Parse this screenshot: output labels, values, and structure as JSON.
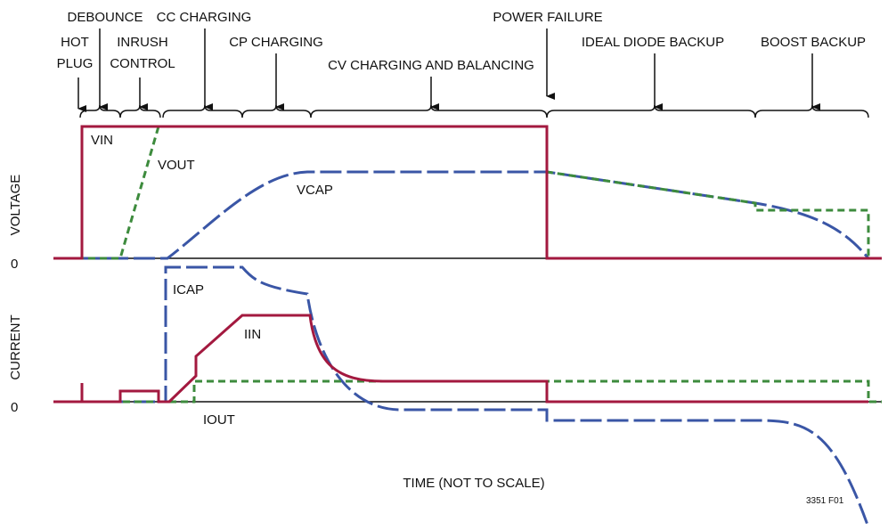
{
  "phases": [
    {
      "lines": [
        "HOT",
        "PLUG"
      ]
    },
    {
      "lines": [
        "DEBOUNCE"
      ]
    },
    {
      "lines": [
        "INRUSH",
        "CONTROL"
      ]
    },
    {
      "lines": [
        "CC CHARGING"
      ]
    },
    {
      "lines": [
        "CP CHARGING"
      ]
    },
    {
      "lines": [
        "CV CHARGING AND BALANCING"
      ]
    },
    {
      "lines": [
        "POWER FAILURE"
      ]
    },
    {
      "lines": [
        "IDEAL DIODE BACKUP"
      ]
    },
    {
      "lines": [
        "BOOST BACKUP"
      ]
    }
  ],
  "signals": {
    "vin": "VIN",
    "vout": "VOUT",
    "vcap": "VCAP",
    "icap": "ICAP",
    "iin": "IIN",
    "iout": "IOUT"
  },
  "axes": {
    "voltage": "VOLTAGE",
    "current": "CURRENT",
    "voltage_zero": "0",
    "current_zero": "0",
    "time": "TIME (NOT TO SCALE)"
  },
  "figure_id": "3351 F01"
}
